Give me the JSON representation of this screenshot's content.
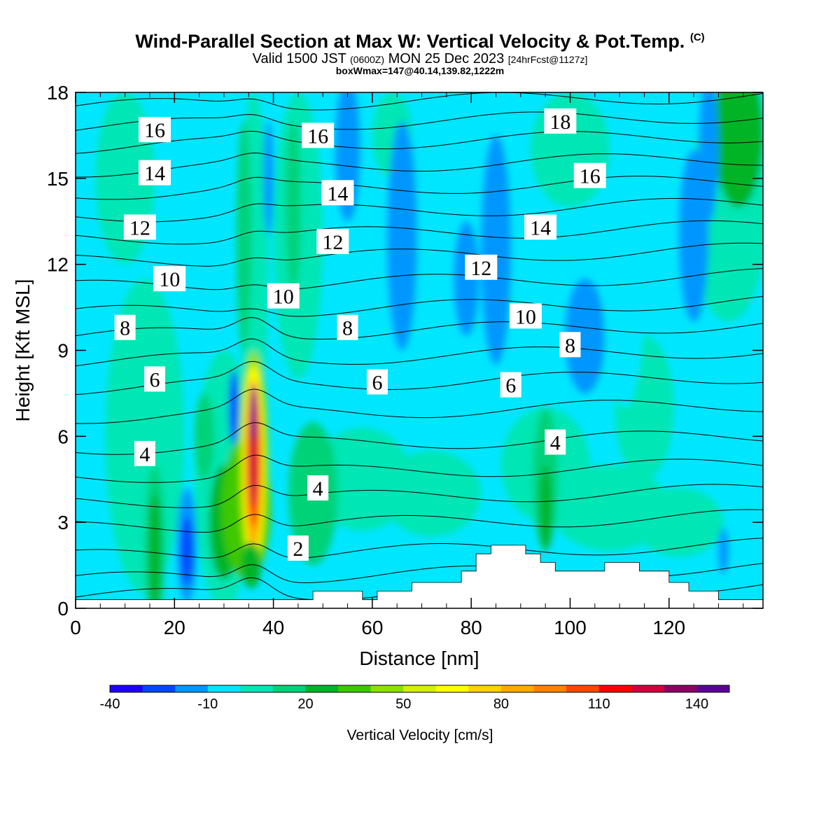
{
  "header": {
    "title": "Wind-Parallel Section at Max W: Vertical Velocity & Pot.Temp.",
    "copyright": "(C)",
    "valid_prefix": "Valid 1500 JST",
    "valid_utc": "(0600Z)",
    "valid_date": "MON 25 Dec 2023",
    "forecast": "[24hrFcst@1127z]",
    "box_info": "boxWmax=147@40.14,139.82,1222m"
  },
  "chart_data": {
    "type": "heatmap",
    "xlabel": "Distance [nm]",
    "ylabel": "Height [Kft MSL]",
    "xlim": [
      0,
      139
    ],
    "ylim": [
      0,
      18
    ],
    "xticks": [
      0,
      20,
      40,
      60,
      80,
      100,
      120
    ],
    "yticks": [
      0,
      3,
      6,
      9,
      12,
      15,
      18
    ],
    "colorbar": {
      "title": "Vertical Velocity [cm/s]",
      "levels": [
        -40,
        -30,
        -20,
        -10,
        0,
        10,
        20,
        30,
        40,
        50,
        60,
        70,
        80,
        90,
        100,
        110,
        120,
        130,
        140,
        150
      ],
      "tick_labels": [
        "-40",
        "-10",
        "20",
        "50",
        "80",
        "110",
        "140"
      ],
      "tick_values": [
        -40,
        -10,
        20,
        50,
        80,
        110,
        140
      ],
      "colors": [
        "#1e00ff",
        "#0046ff",
        "#0096ff",
        "#00e6ff",
        "#00e6b4",
        "#00d278",
        "#00b428",
        "#3cc800",
        "#8ce100",
        "#d2f000",
        "#ffff00",
        "#ffd200",
        "#ffaa00",
        "#ff8200",
        "#ff4600",
        "#ff0000",
        "#d2003c",
        "#8c0064",
        "#5a0096"
      ]
    },
    "background_value_cm_s": -5,
    "features": [
      {
        "name": "main updraft",
        "x": 35.5,
        "y_range": [
          1.0,
          9.0
        ],
        "max": 147
      },
      {
        "name": "downdraft left",
        "x": 22.5,
        "y_range": [
          1.0,
          4.0
        ],
        "min": -25
      },
      {
        "name": "downdraft upper",
        "x": 55.0,
        "y_range": [
          13.0,
          18.0
        ],
        "min": -15
      },
      {
        "name": "downdraft right",
        "x": 85.0,
        "y_range": [
          9.0,
          15.0
        ],
        "min": -15
      }
    ],
    "contour_labels": [
      {
        "value": "16",
        "x": 16,
        "y": 16.7
      },
      {
        "value": "16",
        "x": 49,
        "y": 16.5
      },
      {
        "value": "18",
        "x": 98,
        "y": 17.0
      },
      {
        "value": "14",
        "x": 16,
        "y": 15.2
      },
      {
        "value": "14",
        "x": 53,
        "y": 14.5
      },
      {
        "value": "16",
        "x": 104,
        "y": 15.1
      },
      {
        "value": "12",
        "x": 13,
        "y": 13.3
      },
      {
        "value": "12",
        "x": 52,
        "y": 12.8
      },
      {
        "value": "14",
        "x": 94,
        "y": 13.3
      },
      {
        "value": "12",
        "x": 82,
        "y": 11.9
      },
      {
        "value": "10",
        "x": 19,
        "y": 11.5
      },
      {
        "value": "10",
        "x": 42,
        "y": 10.9
      },
      {
        "value": "10",
        "x": 91,
        "y": 10.2
      },
      {
        "value": "8",
        "x": 10,
        "y": 9.8
      },
      {
        "value": "8",
        "x": 55,
        "y": 9.8
      },
      {
        "value": "8",
        "x": 100,
        "y": 9.2
      },
      {
        "value": "6",
        "x": 16,
        "y": 8.0
      },
      {
        "value": "6",
        "x": 61,
        "y": 7.9
      },
      {
        "value": "6",
        "x": 88,
        "y": 7.8
      },
      {
        "value": "4",
        "x": 14,
        "y": 5.4
      },
      {
        "value": "4",
        "x": 49,
        "y": 4.2
      },
      {
        "value": "4",
        "x": 97,
        "y": 5.8
      },
      {
        "value": "2",
        "x": 45,
        "y": 2.1
      }
    ],
    "terrain_kft": [
      [
        0,
        0.3
      ],
      [
        48,
        0.3
      ],
      [
        48,
        0.6
      ],
      [
        58,
        0.6
      ],
      [
        58,
        0.3
      ],
      [
        61,
        0.3
      ],
      [
        61,
        0.6
      ],
      [
        68,
        0.6
      ],
      [
        68,
        0.9
      ],
      [
        78,
        0.9
      ],
      [
        78,
        1.3
      ],
      [
        81,
        1.3
      ],
      [
        81,
        1.9
      ],
      [
        84,
        1.9
      ],
      [
        84,
        2.2
      ],
      [
        91,
        2.2
      ],
      [
        91,
        1.9
      ],
      [
        94,
        1.9
      ],
      [
        94,
        1.6
      ],
      [
        97,
        1.6
      ],
      [
        97,
        1.3
      ],
      [
        107,
        1.3
      ],
      [
        107,
        1.6
      ],
      [
        114,
        1.6
      ],
      [
        114,
        1.3
      ],
      [
        120,
        1.3
      ],
      [
        120,
        0.9
      ],
      [
        124,
        0.9
      ],
      [
        124,
        0.6
      ],
      [
        130,
        0.6
      ],
      [
        130,
        0.3
      ],
      [
        139,
        0.3
      ]
    ]
  }
}
